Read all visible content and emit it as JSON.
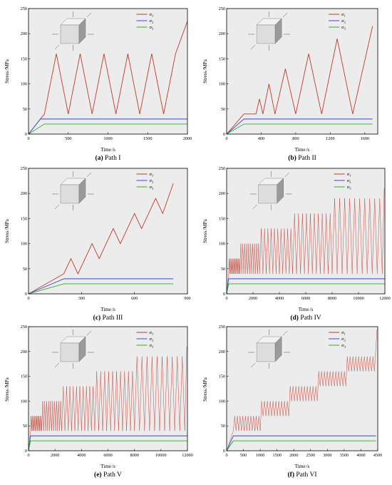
{
  "colors": {
    "s1": "#c0392b",
    "s2": "#3a47d0",
    "s3": "#2ab02a",
    "cube_face": "#dddddd"
  },
  "ylabel_text": "Stress",
  "ylabel_unit": "/MPa",
  "xlabel_text": "Time",
  "xlabel_unit": "/s",
  "legend_labels": [
    "σ",
    "σ",
    "σ"
  ],
  "legend_subs": [
    "1",
    "2",
    "3"
  ],
  "chart_data": [
    {
      "type": "line",
      "caption_id": "(a)",
      "caption_text": " Path I",
      "xlim": [
        0,
        2000
      ],
      "ylim": [
        0,
        250
      ],
      "xticks": [
        0,
        500,
        1000,
        1500,
        2000
      ],
      "yticks": [
        0,
        50,
        100,
        150,
        200,
        250
      ],
      "xtick_labels": [
        "0",
        "500",
        "1000",
        "1500",
        "2000"
      ],
      "ytick_labels": [
        "0",
        "50",
        "100",
        "150",
        "200",
        "250"
      ],
      "legend": "top-center",
      "series": [
        {
          "key": "s1",
          "x": [
            0,
            200,
            350,
            500,
            650,
            800,
            950,
            1100,
            1250,
            1400,
            1550,
            1700,
            1850,
            2000
          ],
          "y": [
            0,
            40,
            160,
            40,
            160,
            40,
            160,
            40,
            160,
            40,
            160,
            40,
            160,
            225
          ]
        },
        {
          "key": "s2",
          "x": [
            0,
            150,
            2000
          ],
          "y": [
            0,
            30,
            30
          ]
        },
        {
          "key": "s3",
          "x": [
            0,
            200,
            2000
          ],
          "y": [
            0,
            20,
            20
          ]
        }
      ]
    },
    {
      "type": "line",
      "caption_id": "(b)",
      "caption_text": " Path II",
      "xlim": [
        0,
        1750
      ],
      "ylim": [
        0,
        250
      ],
      "xticks": [
        0,
        400,
        800,
        1200,
        1600
      ],
      "yticks": [
        0,
        50,
        100,
        150,
        200,
        250
      ],
      "xtick_labels": [
        "0",
        "400",
        "800",
        "1200",
        "1600"
      ],
      "ytick_labels": [
        "0",
        "50",
        "100",
        "150",
        "200",
        "250"
      ],
      "legend": "top-center",
      "series": [
        {
          "key": "s1",
          "x": [
            0,
            200,
            340,
            380,
            420,
            490,
            560,
            680,
            800,
            950,
            1100,
            1280,
            1460,
            1690
          ],
          "y": [
            0,
            40,
            40,
            70,
            40,
            100,
            40,
            130,
            40,
            160,
            40,
            190,
            40,
            215
          ]
        },
        {
          "key": "s2",
          "x": [
            0,
            200,
            1690
          ],
          "y": [
            0,
            30,
            30
          ]
        },
        {
          "key": "s3",
          "x": [
            0,
            200,
            1690
          ],
          "y": [
            0,
            20,
            20
          ]
        }
      ]
    },
    {
      "type": "line",
      "caption_id": "(c)",
      "caption_text": " Path III",
      "xlim": [
        0,
        900
      ],
      "ylim": [
        0,
        250
      ],
      "xticks": [
        0,
        300,
        600,
        900
      ],
      "yticks": [
        0,
        50,
        100,
        150,
        200,
        250
      ],
      "xtick_labels": [
        "0",
        "300",
        "600",
        "900"
      ],
      "ytick_labels": [
        "0",
        "50",
        "100",
        "150",
        "200",
        "250"
      ],
      "legend": "top-center",
      "series": [
        {
          "key": "s1",
          "x": [
            0,
            200,
            240,
            280,
            360,
            400,
            480,
            520,
            600,
            640,
            720,
            760,
            820
          ],
          "y": [
            0,
            40,
            70,
            40,
            100,
            70,
            130,
            100,
            160,
            130,
            190,
            160,
            220
          ]
        },
        {
          "key": "s2",
          "x": [
            0,
            200,
            820
          ],
          "y": [
            0,
            30,
            30
          ]
        },
        {
          "key": "s3",
          "x": [
            0,
            200,
            820
          ],
          "y": [
            0,
            20,
            20
          ]
        }
      ]
    },
    {
      "type": "line",
      "caption_id": "(d)",
      "caption_text": " Path IV",
      "xlim": [
        0,
        12000
      ],
      "ylim": [
        0,
        250
      ],
      "xticks": [
        0,
        2000,
        4000,
        6000,
        8000,
        10000,
        12000
      ],
      "yticks": [
        0,
        50,
        100,
        150,
        200,
        250
      ],
      "xtick_labels": [
        "0",
        "2000",
        "4000",
        "6000",
        "8000",
        "10000",
        "12000"
      ],
      "ytick_labels": [
        "0",
        "50",
        "100",
        "150",
        "200",
        "250"
      ],
      "legend": "top-center",
      "cyclic": {
        "start": [
          0,
          0
        ],
        "start_end": [
          150,
          40
        ],
        "blocks": [
          [
            150,
            1000,
            40,
            70,
            10
          ],
          [
            1000,
            2500,
            40,
            100,
            10
          ],
          [
            2500,
            5000,
            40,
            130,
            10
          ],
          [
            5000,
            8000,
            40,
            160,
            10
          ],
          [
            8000,
            11800,
            40,
            190,
            10
          ]
        ],
        "end": [
          11950,
          210
        ]
      },
      "series": [
        {
          "key": "s2",
          "x": [
            0,
            150,
            12000
          ],
          "y": [
            0,
            30,
            30
          ]
        },
        {
          "key": "s3",
          "x": [
            0,
            150,
            12000
          ],
          "y": [
            0,
            20,
            20
          ]
        }
      ]
    },
    {
      "type": "line",
      "caption_id": "(e)",
      "caption_text": " Path V",
      "xlim": [
        0,
        12000
      ],
      "ylim": [
        0,
        250
      ],
      "xticks": [
        0,
        2000,
        4000,
        6000,
        8000,
        10000,
        12000
      ],
      "yticks": [
        0,
        50,
        100,
        150,
        200,
        250
      ],
      "xtick_labels": [
        "0",
        "2000",
        "4000",
        "6000",
        "8000",
        "10000",
        "12000"
      ],
      "ytick_labels": [
        "0",
        "50",
        "100",
        "150",
        "200",
        "250"
      ],
      "legend": "top-center",
      "cyclic": {
        "start": [
          0,
          0
        ],
        "start_end": [
          150,
          40
        ],
        "blocks": [
          [
            150,
            1000,
            40,
            70,
            10
          ],
          [
            1000,
            2500,
            40,
            100,
            10
          ],
          [
            2500,
            5000,
            40,
            130,
            10
          ],
          [
            5000,
            8000,
            40,
            160,
            10
          ],
          [
            8000,
            11800,
            40,
            190,
            10
          ]
        ],
        "end": [
          11950,
          210
        ]
      },
      "series": [
        {
          "key": "s2",
          "x": [
            0,
            150,
            12000
          ],
          "y": [
            0,
            30,
            30
          ]
        },
        {
          "key": "s3",
          "x": [
            0,
            150,
            12000
          ],
          "y": [
            0,
            20,
            20
          ]
        }
      ]
    },
    {
      "type": "line",
      "caption_id": "(f)",
      "caption_text": " Path VI",
      "xlim": [
        0,
        4500
      ],
      "ylim": [
        0,
        250
      ],
      "xticks": [
        0,
        500,
        1000,
        1500,
        2000,
        2500,
        3000,
        3500,
        4000,
        4500
      ],
      "yticks": [
        0,
        50,
        100,
        150,
        200,
        250
      ],
      "xtick_labels": [
        "0",
        "500",
        "1000",
        "1500",
        "2000",
        "2500",
        "3000",
        "3500",
        "4000",
        "4500"
      ],
      "ytick_labels": [
        "0",
        "50",
        "100",
        "150",
        "200",
        "250"
      ],
      "legend": "top-center",
      "cyclic": {
        "start": [
          0,
          0
        ],
        "start_end": [
          200,
          40
        ],
        "blocks": [
          [
            200,
            1000,
            40,
            70,
            10
          ],
          [
            1000,
            1850,
            70,
            100,
            10
          ],
          [
            1850,
            2700,
            100,
            130,
            10
          ],
          [
            2700,
            3550,
            130,
            160,
            10
          ],
          [
            3550,
            4400,
            160,
            190,
            10
          ]
        ],
        "end": [
          4480,
          245
        ]
      },
      "series": [
        {
          "key": "s2",
          "x": [
            0,
            200,
            4450
          ],
          "y": [
            0,
            30,
            30
          ]
        },
        {
          "key": "s3",
          "x": [
            0,
            200,
            4450
          ],
          "y": [
            0,
            20,
            20
          ]
        }
      ]
    }
  ]
}
